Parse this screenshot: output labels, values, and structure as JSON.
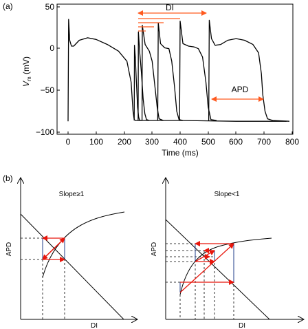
{
  "panel_a": {
    "label": "(a)",
    "ylabel_main": "V",
    "ylabel_sub": "m",
    "ylabel_unit": " (mV)",
    "xlabel": "Time (ms)",
    "yticks": [
      "50",
      "0",
      "−50",
      "−100"
    ],
    "xticks": [
      "0",
      "100",
      "200",
      "300",
      "400",
      "500",
      "600",
      "700",
      "800"
    ],
    "di_label": "DI",
    "apd_label": "APD",
    "accent": "#ff5a1f"
  },
  "panel_b": {
    "label": "(b)",
    "left": {
      "title": "Slope≥1",
      "ylabel": "APD",
      "xlabel": "DI"
    },
    "right": {
      "title": "Slope<1",
      "ylabel": "APD",
      "xlabel": "DI"
    },
    "arrow_color": "#e8160c",
    "box_color": "#1f3d8a"
  },
  "chart_data": [
    {
      "type": "line",
      "panel": "a",
      "xlabel": "Time (ms)",
      "ylabel": "Vm (mV)",
      "xlim": [
        -10,
        800
      ],
      "ylim": [
        -100,
        50
      ],
      "series": [
        {
          "x": [
            0,
            2,
            6,
            12,
            20,
            40,
            70,
            100,
            140,
            180,
            210,
            225,
            232,
            236,
            240,
            255,
            300,
            400,
            500,
            600,
            700,
            780
          ],
          "y": [
            -87,
            35,
            10,
            3,
            3,
            10,
            13,
            11,
            5,
            -3,
            -15,
            -40,
            -75,
            -85,
            -86,
            -86,
            -86,
            -86,
            -86.5,
            -87,
            -87,
            -87
          ]
        },
        {
          "x": [
            236,
            237,
            240,
            244,
            248,
            252,
            256,
            262
          ],
          "y": [
            -86,
            4,
            -10,
            -40,
            -70,
            -82,
            -86,
            -86
          ]
        },
        {
          "x": [
            250,
            251,
            256,
            262,
            268,
            274,
            280,
            290
          ],
          "y": [
            -86,
            20,
            -5,
            -30,
            -60,
            -78,
            -85,
            -86
          ]
        },
        {
          "x": [
            264,
            265,
            275,
            290,
            300,
            310,
            318,
            325,
            340
          ],
          "y": [
            -86,
            28,
            5,
            -3,
            -15,
            -45,
            -70,
            -84,
            -86
          ]
        },
        {
          "x": [
            320,
            322,
            330,
            345,
            360,
            370,
            380,
            388,
            396,
            410
          ],
          "y": [
            -86,
            31,
            6,
            1,
            0,
            -15,
            -45,
            -75,
            -85,
            -86
          ]
        },
        {
          "x": [
            398,
            400,
            410,
            430,
            450,
            465,
            480,
            492,
            500,
            510,
            530
          ],
          "y": [
            -86,
            33,
            6,
            3,
            2,
            0,
            -10,
            -40,
            -70,
            -85,
            -86
          ]
        },
        {
          "x": [
            502,
            504,
            512,
            525,
            545,
            570,
            600,
            630,
            660,
            680,
            690,
            695,
            703,
            712,
            730,
            790
          ],
          "y": [
            -86,
            34,
            12,
            4,
            5,
            10,
            12,
            10,
            5,
            -5,
            -30,
            -55,
            -75,
            -84,
            -86,
            -87
          ]
        }
      ],
      "annotations": [
        {
          "text": "DI",
          "from_x": 245,
          "to_x": 500,
          "y": 42
        },
        {
          "text": "APD",
          "from_x": 510,
          "to_x": 700,
          "y": -60
        }
      ]
    },
    {
      "type": "line",
      "panel": "b-left",
      "title": "Slope≥1",
      "xlabel": "DI",
      "ylabel": "APD",
      "xlim": [
        0,
        10
      ],
      "ylim": [
        0,
        10
      ],
      "series": [
        {
          "name": "restitution",
          "x": [
            2.2,
            3.0,
            4.0,
            5.0,
            6.0,
            7.0,
            8.0,
            9.2
          ],
          "y": [
            3.2,
            4.9,
            6.1,
            6.8,
            7.3,
            7.7,
            8.0,
            8.3
          ]
        },
        {
          "name": "line",
          "x": [
            0,
            10
          ],
          "y": [
            8.6,
            -1.4
          ]
        }
      ]
    },
    {
      "type": "line",
      "panel": "b-right",
      "title": "Slope<1",
      "xlabel": "DI",
      "ylabel": "APD",
      "xlim": [
        0,
        10
      ],
      "ylim": [
        0,
        10
      ],
      "series": [
        {
          "name": "restitution",
          "x": [
            1.5,
            2.0,
            3.0,
            4.0,
            5.0,
            6.0,
            7.0,
            8.0,
            9.0
          ],
          "y": [
            2.0,
            3.6,
            4.6,
            5.1,
            5.5,
            5.8,
            6.1,
            6.3,
            6.4
          ]
        },
        {
          "name": "line",
          "x": [
            0,
            10
          ],
          "y": [
            8.0,
            -2.0
          ]
        }
      ]
    }
  ]
}
